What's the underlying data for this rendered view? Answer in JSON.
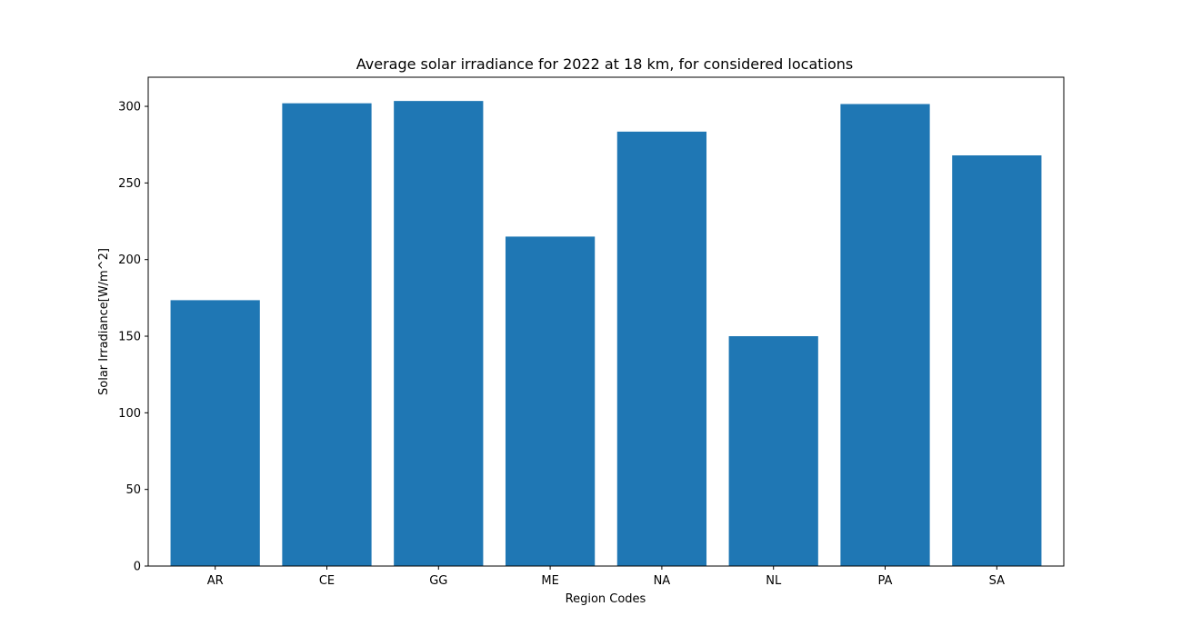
{
  "chart_data": {
    "type": "bar",
    "title": "Average solar irradiance for 2022 at 18 km, for considered locations",
    "xlabel": "Region Codes",
    "ylabel": "Solar Irradiance[W/m^2]",
    "categories": [
      "AR",
      "CE",
      "GG",
      "ME",
      "NA",
      "NL",
      "PA",
      "SA"
    ],
    "values": [
      173.5,
      302.0,
      303.5,
      215.0,
      283.5,
      150.0,
      301.5,
      268.0
    ],
    "ylim": [
      0,
      319
    ],
    "yticks": [
      0,
      50,
      100,
      150,
      200,
      250,
      300
    ],
    "bar_color": "#1f77b4",
    "grid": false,
    "legend": "none"
  }
}
